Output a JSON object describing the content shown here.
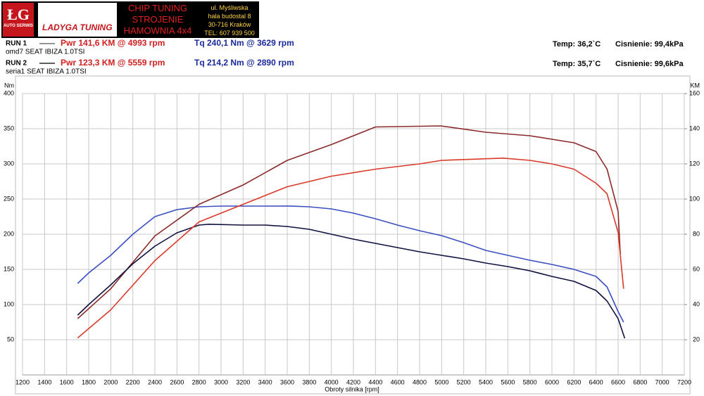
{
  "header": {
    "logo_initials": "ŁG",
    "logo_sub": "AUTO SERWIS",
    "brand": "LADYGA TUNING",
    "services": [
      "CHIP TUNING",
      "STROJENIE",
      "HAMOWNIA 4x4"
    ],
    "address": [
      "ul. Myśliwska",
      "hala budostal 8",
      "30-716 Kraków",
      "TEL: 607 939 500"
    ]
  },
  "runs": [
    {
      "label": "RUN 1",
      "power": "Pwr 141,6 KM @ 4993 rpm",
      "torque": "Tq 240,1 Nm @ 3629 rpm",
      "vehicle": "omd7 SEAT IBIZA 1.0TSI",
      "temp": "Temp: 36,2`C",
      "pressure": "Cisnienie: 99,4kPa"
    },
    {
      "label": "RUN 2",
      "power": "Pwr 123,3 KM @ 5559 rpm",
      "torque": "Tq 214,2 Nm @ 2890 rpm",
      "vehicle": "seria1 SEAT IBIZA 1.0TSI",
      "temp": "Temp: 35,7`C",
      "pressure": "Cisnienie: 99,6kPa"
    }
  ],
  "chart_data": {
    "type": "line",
    "xlabel": "Obroty silnika [rpm]",
    "ylabel": "Nm",
    "y2label": "KM",
    "grid": true,
    "xlim": [
      1200,
      7200
    ],
    "xticks": [
      1200,
      1400,
      1600,
      1800,
      2000,
      2200,
      2400,
      2600,
      2800,
      3000,
      3200,
      3400,
      3600,
      3800,
      4000,
      4200,
      4400,
      4600,
      4800,
      5000,
      5200,
      5400,
      5600,
      5800,
      6000,
      6200,
      6400,
      6600,
      6800,
      7000,
      7200
    ],
    "ylim": [
      0,
      400
    ],
    "yticks": [
      50,
      100,
      150,
      200,
      250,
      300,
      350,
      400
    ],
    "y2lim": [
      0,
      160
    ],
    "y2ticks": [
      20,
      40,
      60,
      80,
      100,
      120,
      140,
      160
    ],
    "series": [
      {
        "name": "RUN 1",
        "color": "#3a4fc0",
        "x": [
          1700,
          1800,
          2000,
          2200,
          2400,
          2600,
          2800,
          3000,
          3200,
          3400,
          3629,
          3800,
          4000,
          4200,
          4400,
          4600,
          4800,
          5000,
          5200,
          5400,
          5600,
          5800,
          6000,
          6200,
          6400,
          6500,
          6600,
          6650
        ],
        "values": [
          130,
          145,
          170,
          200,
          225,
          235,
          239,
          240,
          240,
          240,
          240.1,
          239,
          236,
          230,
          222,
          213,
          205,
          198,
          188,
          177,
          170,
          163,
          157,
          150,
          140,
          125,
          90,
          75
        ]
      },
      {
        "name": "RUN 1",
        "color": "#8b2a2a",
        "axis": "y2",
        "x": [
          1700,
          2000,
          2400,
          2800,
          3200,
          3600,
          4000,
          4400,
          4993,
          5400,
          5800,
          6200,
          6400,
          6500,
          6600,
          6620
        ],
        "values": [
          32,
          49,
          79,
          97,
          108,
          122,
          131,
          141,
          141.6,
          138,
          136,
          132,
          127,
          117,
          93,
          69
        ]
      },
      {
        "name": "RUN 2",
        "color": "#101040",
        "x": [
          1700,
          1800,
          2000,
          2200,
          2400,
          2600,
          2800,
          2890,
          3200,
          3400,
          3600,
          3800,
          4000,
          4200,
          4400,
          4600,
          4800,
          5000,
          5200,
          5400,
          5600,
          5800,
          6000,
          6200,
          6400,
          6500,
          6600,
          6660
        ],
        "values": [
          85,
          100,
          128,
          158,
          183,
          202,
          213,
          214.2,
          213,
          213,
          211,
          207,
          200,
          193,
          187,
          181,
          175,
          170,
          165,
          159,
          154,
          148,
          140,
          133,
          120,
          105,
          80,
          52
        ]
      },
      {
        "name": "RUN 2",
        "color": "#d93a2a",
        "axis": "y2",
        "x": [
          1700,
          2000,
          2400,
          2800,
          3200,
          3600,
          4000,
          4400,
          4800,
          5000,
          5559,
          5800,
          6000,
          6200,
          6400,
          6500,
          6600,
          6650
        ],
        "values": [
          21,
          37,
          65,
          87,
          97,
          107,
          113,
          117,
          120,
          122,
          123.3,
          122,
          120,
          117,
          109,
          103,
          81,
          49
        ]
      }
    ]
  }
}
